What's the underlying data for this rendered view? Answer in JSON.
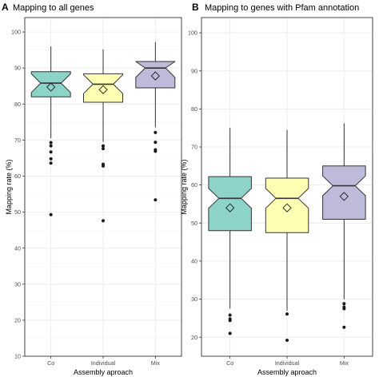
{
  "chart_data": [
    {
      "type": "boxplot",
      "panel_label": "A",
      "title": "Mapping to all genes",
      "xlabel": "Assembly aproach",
      "ylabel": "Mapping rate (%)",
      "ylim": [
        10,
        104
      ],
      "yticks": [
        10,
        20,
        30,
        40,
        50,
        60,
        70,
        80,
        90,
        100
      ],
      "grid": true,
      "notched": true,
      "categories": [
        "Co",
        "Individual",
        "Mix"
      ],
      "colors": [
        "#8dd3c7",
        "#ffffb3",
        "#bebada"
      ],
      "boxes": [
        {
          "category": "Co",
          "whisker_low": 70.5,
          "q1": 82,
          "median": 85.8,
          "q3": 89,
          "whisker_high": 96,
          "mean": 84.7,
          "outliers": [
            69.3,
            68.4,
            66.7,
            64.8,
            63.6,
            49.3
          ]
        },
        {
          "category": "Individual",
          "whisker_low": 69.5,
          "q1": 80.5,
          "median": 85.5,
          "q3": 88.4,
          "whisker_high": 95.2,
          "mean": 84,
          "outliers": [
            68.4,
            67.6,
            63.3,
            62.8,
            47.6
          ]
        },
        {
          "category": "Mix",
          "whisker_low": 73.5,
          "q1": 84.5,
          "median": 90,
          "q3": 91.8,
          "whisker_high": 97.2,
          "mean": 87.8,
          "outliers": [
            72.1,
            69.4,
            67.3,
            66.9,
            53.4
          ]
        }
      ]
    },
    {
      "type": "boxplot",
      "panel_label": "B",
      "title": "Mapping to genes with Pfam annotation",
      "xlabel": "Assembly aproach",
      "ylabel": "Mapping rate (%)",
      "ylim": [
        15,
        104
      ],
      "yticks": [
        20,
        30,
        40,
        50,
        60,
        70,
        80,
        90,
        100
      ],
      "grid": true,
      "notched": true,
      "categories": [
        "Co",
        "Individual",
        "Mix"
      ],
      "colors": [
        "#8dd3c7",
        "#ffffb3",
        "#bebada"
      ],
      "boxes": [
        {
          "category": "Co",
          "whisker_low": 27.5,
          "q1": 48,
          "median": 56.5,
          "q3": 62.2,
          "whisker_high": 75,
          "mean": 54,
          "outliers": [
            25.8,
            24.8,
            24.4,
            21
          ]
        },
        {
          "category": "Individual",
          "whisker_low": 27,
          "q1": 47.5,
          "median": 56.5,
          "q3": 61.8,
          "whisker_high": 74.5,
          "mean": 54,
          "outliers": [
            26.1,
            19.2
          ]
        },
        {
          "category": "Mix",
          "whisker_low": 30,
          "q1": 51,
          "median": 59.8,
          "q3": 65,
          "whisker_high": 76.2,
          "mean": 57,
          "outliers": [
            28.8,
            27.9,
            27.5,
            22.6
          ]
        }
      ]
    }
  ]
}
